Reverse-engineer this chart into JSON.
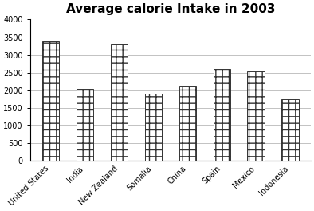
{
  "title": "Average calorie Intake in 2003",
  "categories": [
    "United States",
    "India",
    "New Zealand",
    "Somalia",
    "China",
    "Spain",
    "Mexico",
    "Indonesia"
  ],
  "values": [
    3400,
    2050,
    3300,
    1900,
    2100,
    2600,
    2550,
    1750
  ],
  "bar_color": "#ffffff",
  "bar_edgecolor": "#333333",
  "ylim": [
    0,
    4000
  ],
  "yticks": [
    0,
    500,
    1000,
    1500,
    2000,
    2500,
    3000,
    3500,
    4000
  ],
  "background_color": "#ffffff",
  "title_fontsize": 11,
  "tick_fontsize": 7,
  "xlabel_fontsize": 7,
  "bar_width": 0.5,
  "hatch": "++",
  "grid_color": "#aaaaaa",
  "grid_linewidth": 0.5
}
